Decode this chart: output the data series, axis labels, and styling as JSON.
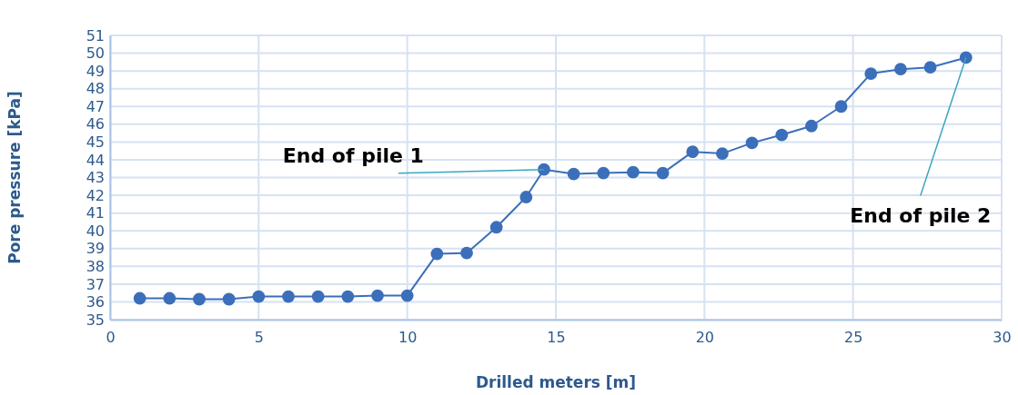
{
  "chart_data": {
    "type": "line",
    "xlabel": "Drilled meters [m]",
    "ylabel": "Pore pressure [kPa]",
    "x": [
      1,
      2,
      3,
      4,
      5,
      6,
      7,
      8,
      9,
      10,
      11,
      12,
      13,
      14,
      14.6,
      15.6,
      16.6,
      17.6,
      18.6,
      19.6,
      20.6,
      21.6,
      22.6,
      23.6,
      24.6,
      25.6,
      26.6,
      27.6,
      28.8
    ],
    "series": [
      {
        "color": "#3b6fba",
        "values": [
          36.2,
          36.2,
          36.15,
          36.15,
          36.3,
          36.3,
          36.3,
          36.3,
          36.35,
          36.35,
          38.7,
          38.75,
          40.2,
          41.9,
          43.45,
          43.2,
          43.25,
          43.3,
          43.25,
          44.45,
          44.35,
          44.95,
          45.4,
          45.9,
          47.0,
          48.85,
          49.1,
          49.2,
          49.75
        ]
      }
    ],
    "xlim": [
      0,
      30
    ],
    "xticks": [
      0,
      5,
      10,
      15,
      20,
      25,
      30
    ],
    "ylim": [
      35,
      51
    ],
    "yticks": [
      35,
      36,
      37,
      38,
      39,
      40,
      41,
      42,
      43,
      44,
      45,
      46,
      47,
      48,
      49,
      50,
      51
    ],
    "grid": true,
    "marker": "circle",
    "line_style": "solid",
    "annotations": [
      {
        "text": "End of pile 1",
        "x": 14.6,
        "y": 43.45
      },
      {
        "text": "End of pile 2",
        "x": 28.8,
        "y": 49.75
      }
    ]
  }
}
